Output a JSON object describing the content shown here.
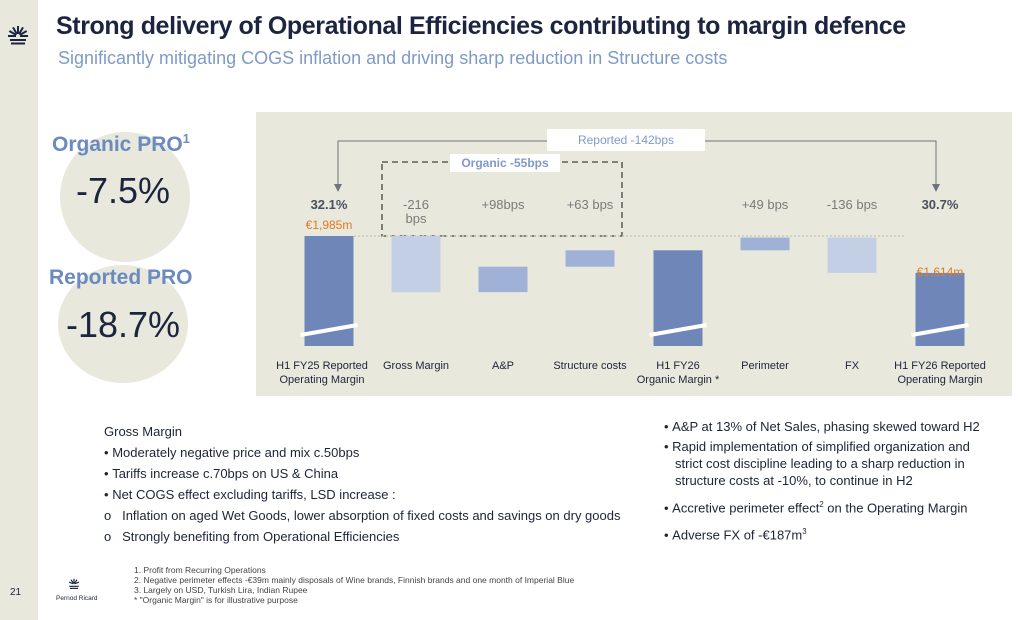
{
  "header": {
    "title": "Strong delivery of Operational Efficiencies contributing to margin defence",
    "subtitle": "Significantly mitigating COGS inflation and driving sharp reduction in Structure costs"
  },
  "kpis": {
    "organic_label": "Organic PRO",
    "organic_sup": "1",
    "organic_value": "-7.5%",
    "reported_label": "Reported PRO",
    "reported_value": "-18.7%"
  },
  "chart_data": {
    "type": "waterfall",
    "unit": "bps",
    "reported_bracket": "Reported  -142bps",
    "organic_bracket": "Organic -55bps",
    "categories": [
      "H1 FY25 Reported\nOperating Margin",
      "Gross Margin",
      "A&P",
      "Structure costs",
      "H1 FY26\nOrganic Margin *",
      "Perimeter",
      "FX",
      "H1 FY26 Reported\nOperating Margin"
    ],
    "delta_labels": [
      "32.1%",
      "-216\nbps",
      "+98bps",
      "+63 bps",
      "",
      "+49 bps",
      "-136 bps",
      "30.7%"
    ],
    "values_bps": [
      null,
      -216,
      98,
      63,
      null,
      49,
      -136,
      null
    ],
    "totals": {
      "start_margin_pct": 32.1,
      "end_margin_pct": 30.7
    },
    "amounts": {
      "start": "€1,985m",
      "end": "€1,614m"
    }
  },
  "left_notes": {
    "heading": "Gross Margin",
    "items": [
      "Moderately negative price and mix c.50bps",
      "Tariffs increase c.70bps on US & China",
      "Net COGS effect excluding tariffs,  LSD increase :"
    ],
    "sub_items": [
      "Inflation on aged Wet Goods, lower absorption of fixed costs and savings on dry goods",
      "Strongly benefiting from Operational Efficiencies"
    ],
    "bullet_char": "•",
    "sub_bullet_char": "o"
  },
  "right_notes": {
    "item1": "A&P at 13% of Net Sales, phasing skewed toward H2",
    "item2_lines": [
      "Rapid implementation of simplified organization and",
      "strict cost discipline leading to a sharp reduction in",
      "structure costs at -10%, to continue in H2"
    ],
    "item3_pre": "Accretive perimeter effect",
    "item3_sup": "2",
    "item3_post": " on the Operating Margin",
    "item4_pre": "Adverse FX of -€187m",
    "item4_sup": "3"
  },
  "footnotes": [
    "1.     Profit from Recurring Operations",
    "2.     Negative perimeter effects -€39m mainly disposals of Wine brands, Finnish brands and one month of Imperial Blue",
    "3.     Largely on USD, Turkish Lira, Indian Rupee",
    "* \"Organic Margin\" is for illustrative purpose"
  ],
  "page_number": "21",
  "brand": "Pernod Ricard",
  "colors": {
    "navy_bar": "#6f87b8",
    "light_bar": "#c3cfe4",
    "mid_bar": "#9fb1d6",
    "panel": "#e8e8dc",
    "orange": "#e07b1f",
    "title": "#1c2440",
    "subtitle": "#7f9ac8"
  }
}
